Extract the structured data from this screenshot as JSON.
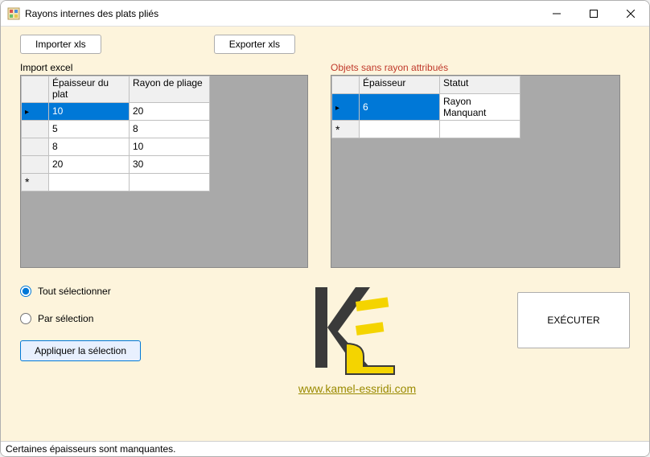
{
  "window": {
    "title": "Rayons internes des plats pliés"
  },
  "toolbar": {
    "import_label": "Importer xls",
    "export_label": "Exporter xls"
  },
  "left_panel": {
    "label": "Import excel",
    "col1": "Épaisseur du plat",
    "col2": "Rayon de pliage",
    "col1_width": 100,
    "col2_width": 100,
    "rows": [
      {
        "thickness": "10",
        "radius": "20",
        "selected": true
      },
      {
        "thickness": "5",
        "radius": "8",
        "selected": false
      },
      {
        "thickness": "8",
        "radius": "10",
        "selected": false
      },
      {
        "thickness": "20",
        "radius": "30",
        "selected": false
      }
    ]
  },
  "right_panel": {
    "label": "Objets sans rayon attribués",
    "col1": "Épaisseur",
    "col2": "Statut",
    "col1_width": 100,
    "col2_width": 100,
    "rows": [
      {
        "thickness": "6",
        "status": "Rayon Manquant",
        "selected": true
      }
    ]
  },
  "selection": {
    "all_label": "Tout sélectionner",
    "by_sel_label": "Par sélection",
    "apply_label": "Appliquer la sélection",
    "selected": "all"
  },
  "execute_label": "EXÉCUTER",
  "url": "www.kamel-essridi.com",
  "status": "Certaines épaisseurs sont manquantes.",
  "colors": {
    "client_bg": "#fdf4dc",
    "grid_bg": "#a9a9a9",
    "selection": "#0078d7",
    "label_red": "#c0392b",
    "link": "#9a8a00"
  }
}
